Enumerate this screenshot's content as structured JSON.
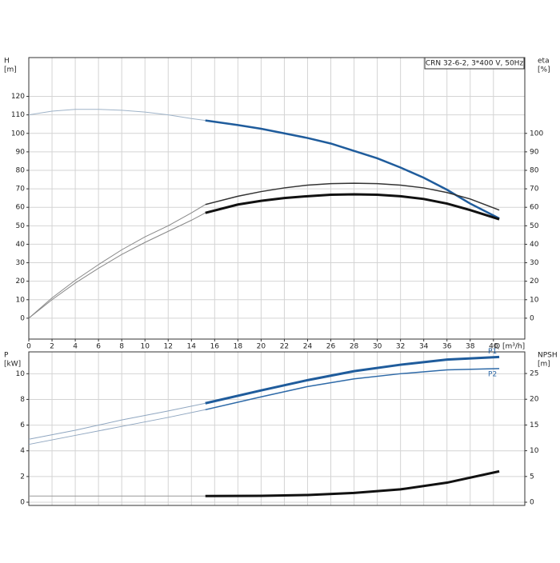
{
  "chart_data": [
    {
      "type": "line",
      "title": "CRN 32-6-2, 3*400 V, 50Hz",
      "x_label": "Q [m³/h]",
      "y_label": "H",
      "y_unit": "[m]",
      "y2_label": "eta",
      "y2_unit": "[%]",
      "xlim": [
        0,
        42.7
      ],
      "xticks": [
        0,
        2,
        4,
        6,
        8,
        10,
        12,
        14,
        16,
        18,
        20,
        22,
        24,
        26,
        28,
        30,
        32,
        34,
        36,
        38,
        40
      ],
      "ylim": [
        -11.3,
        141
      ],
      "yticks": [
        0,
        10,
        20,
        30,
        40,
        50,
        60,
        70,
        80,
        90,
        100,
        110,
        120
      ],
      "y2lim": [
        -11.3,
        141
      ],
      "y2ticks": [
        0,
        10,
        20,
        30,
        40,
        50,
        60,
        70,
        80,
        90,
        100
      ],
      "grid": true,
      "series": [
        {
          "color": "#9fb3c8",
          "width": 1,
          "x": [
            0,
            2,
            4,
            6,
            8,
            10,
            12,
            14,
            15.2
          ],
          "values": [
            110,
            112,
            113,
            113,
            112.5,
            111.5,
            110,
            108,
            107
          ]
        },
        {
          "color": "#1f5c9c",
          "width": 2.5,
          "x": [
            15.2,
            18,
            20,
            22,
            24,
            26,
            28,
            30,
            32,
            34,
            36,
            38,
            40.5
          ],
          "values": [
            107,
            104.5,
            102.5,
            100,
            97.5,
            94.5,
            90.5,
            86.5,
            81.5,
            76,
            69.5,
            62,
            54
          ]
        },
        {
          "color": "#888888",
          "width": 1,
          "axis": "y2",
          "x": [
            0,
            2,
            4,
            6,
            8,
            10,
            12,
            14,
            15.2
          ],
          "values": [
            0,
            11,
            20.5,
            29,
            37,
            44,
            50,
            57,
            61.5
          ]
        },
        {
          "color": "#888888",
          "width": 1,
          "axis": "y2",
          "x": [
            0,
            2,
            4,
            6,
            8,
            10,
            12,
            14,
            15.2
          ],
          "values": [
            0,
            10,
            19,
            27,
            34.5,
            41,
            47,
            53,
            57
          ]
        },
        {
          "color": "#333333",
          "width": 1.5,
          "axis": "y2",
          "x": [
            15.2,
            18,
            20,
            22,
            24,
            26,
            28,
            30,
            32,
            34,
            36,
            38,
            40.5
          ],
          "values": [
            61.5,
            66,
            68.5,
            70.5,
            72,
            72.8,
            73,
            72.8,
            72,
            70.5,
            68,
            64.5,
            58.5
          ]
        },
        {
          "color": "#111111",
          "width": 3,
          "axis": "y2",
          "x": [
            15.2,
            18,
            20,
            22,
            24,
            26,
            28,
            30,
            32,
            34,
            36,
            38,
            40.5
          ],
          "values": [
            57,
            61.5,
            63.5,
            65,
            66,
            66.8,
            67,
            66.8,
            66,
            64.5,
            62,
            58.5,
            53.5
          ]
        }
      ]
    },
    {
      "type": "line",
      "y_label": "P",
      "y_unit": "[kW]",
      "y2_label": "NPSH",
      "y2_unit": "[m]",
      "xlim": [
        0,
        42.7
      ],
      "ylim": [
        -0.25,
        11.7
      ],
      "yticks": [
        0,
        2,
        4,
        6,
        8,
        10
      ],
      "y2lim": [
        -0.62,
        29.2
      ],
      "y2ticks": [
        0,
        5,
        10,
        15,
        20,
        25
      ],
      "grid": true,
      "series": [
        {
          "color": "#8fa6c0",
          "width": 1,
          "x": [
            0,
            4,
            8,
            12,
            15.2
          ],
          "values": [
            4.9,
            5.6,
            6.4,
            7.1,
            7.7
          ]
        },
        {
          "name": "P1",
          "color": "#1f5c9c",
          "width": 3,
          "x": [
            15.2,
            20,
            24,
            28,
            32,
            36,
            40.5
          ],
          "values": [
            7.7,
            8.7,
            9.5,
            10.2,
            10.7,
            11.1,
            11.3
          ]
        },
        {
          "color": "#8fa6c0",
          "width": 1,
          "x": [
            0,
            4,
            8,
            12,
            15.2
          ],
          "values": [
            4.5,
            5.2,
            5.9,
            6.6,
            7.2
          ]
        },
        {
          "name": "P2",
          "color": "#2e6aa8",
          "width": 1.5,
          "x": [
            15.2,
            20,
            24,
            28,
            32,
            36,
            40.5
          ],
          "values": [
            7.2,
            8.2,
            9,
            9.6,
            10,
            10.3,
            10.4
          ]
        },
        {
          "color": "#999999",
          "width": 1,
          "axis": "y2",
          "x": [
            0,
            15.2
          ],
          "values": [
            1.2,
            1.2
          ]
        },
        {
          "color": "#111111",
          "width": 3,
          "axis": "y2",
          "x": [
            15.2,
            20,
            24,
            28,
            32,
            36,
            40.5
          ],
          "values": [
            1.2,
            1.25,
            1.4,
            1.8,
            2.5,
            3.8,
            6.0
          ]
        }
      ]
    }
  ]
}
